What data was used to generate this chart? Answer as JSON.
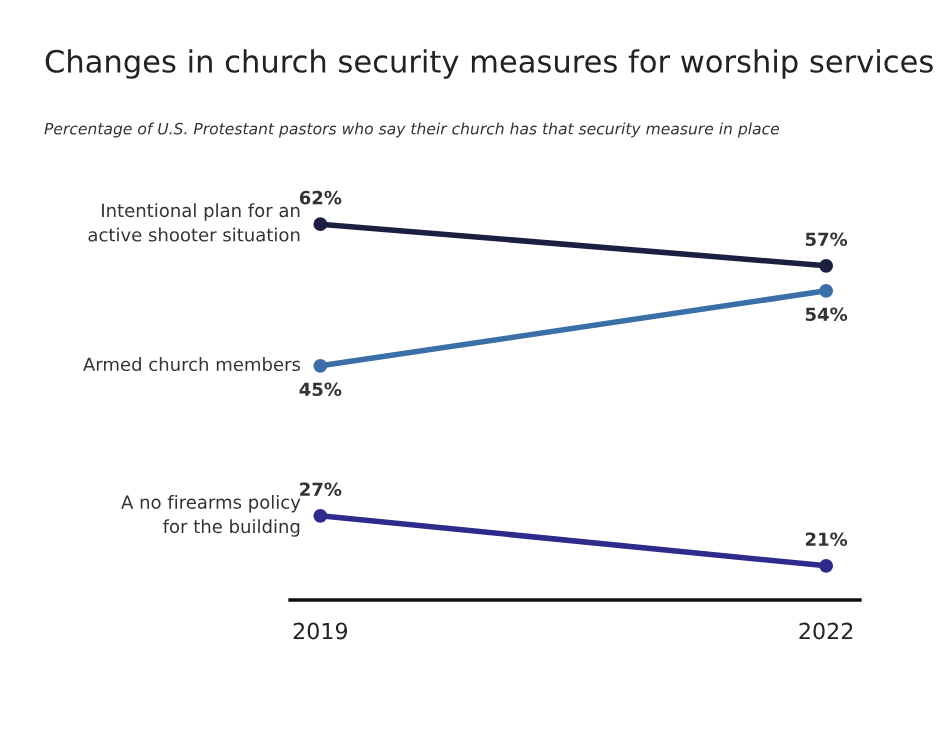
{
  "chart_data": {
    "type": "line",
    "title": "Changes in church security measures for worship services",
    "subtitle": "Percentage of U.S. Protestant pastors who say their church has that security measure in place",
    "categories": [
      "2019",
      "2022"
    ],
    "series": [
      {
        "name": "Intentional plan for an\nactive shooter situation",
        "color": "#1c1f3f",
        "values": [
          62,
          57
        ],
        "value_labels": [
          "62%",
          "57%"
        ]
      },
      {
        "name": "Armed church members",
        "color": "#3b6fa8",
        "values": [
          45,
          54
        ],
        "value_labels": [
          "45%",
          "54%"
        ]
      },
      {
        "name": "A no firearms policy\nfor the building",
        "color": "#2f2b8c",
        "values": [
          27,
          21
        ],
        "value_labels": [
          "27%",
          "21%"
        ]
      }
    ],
    "tick_labels": "x",
    "marker": "circle",
    "line_style": "solid",
    "grid": false,
    "legend": false
  }
}
